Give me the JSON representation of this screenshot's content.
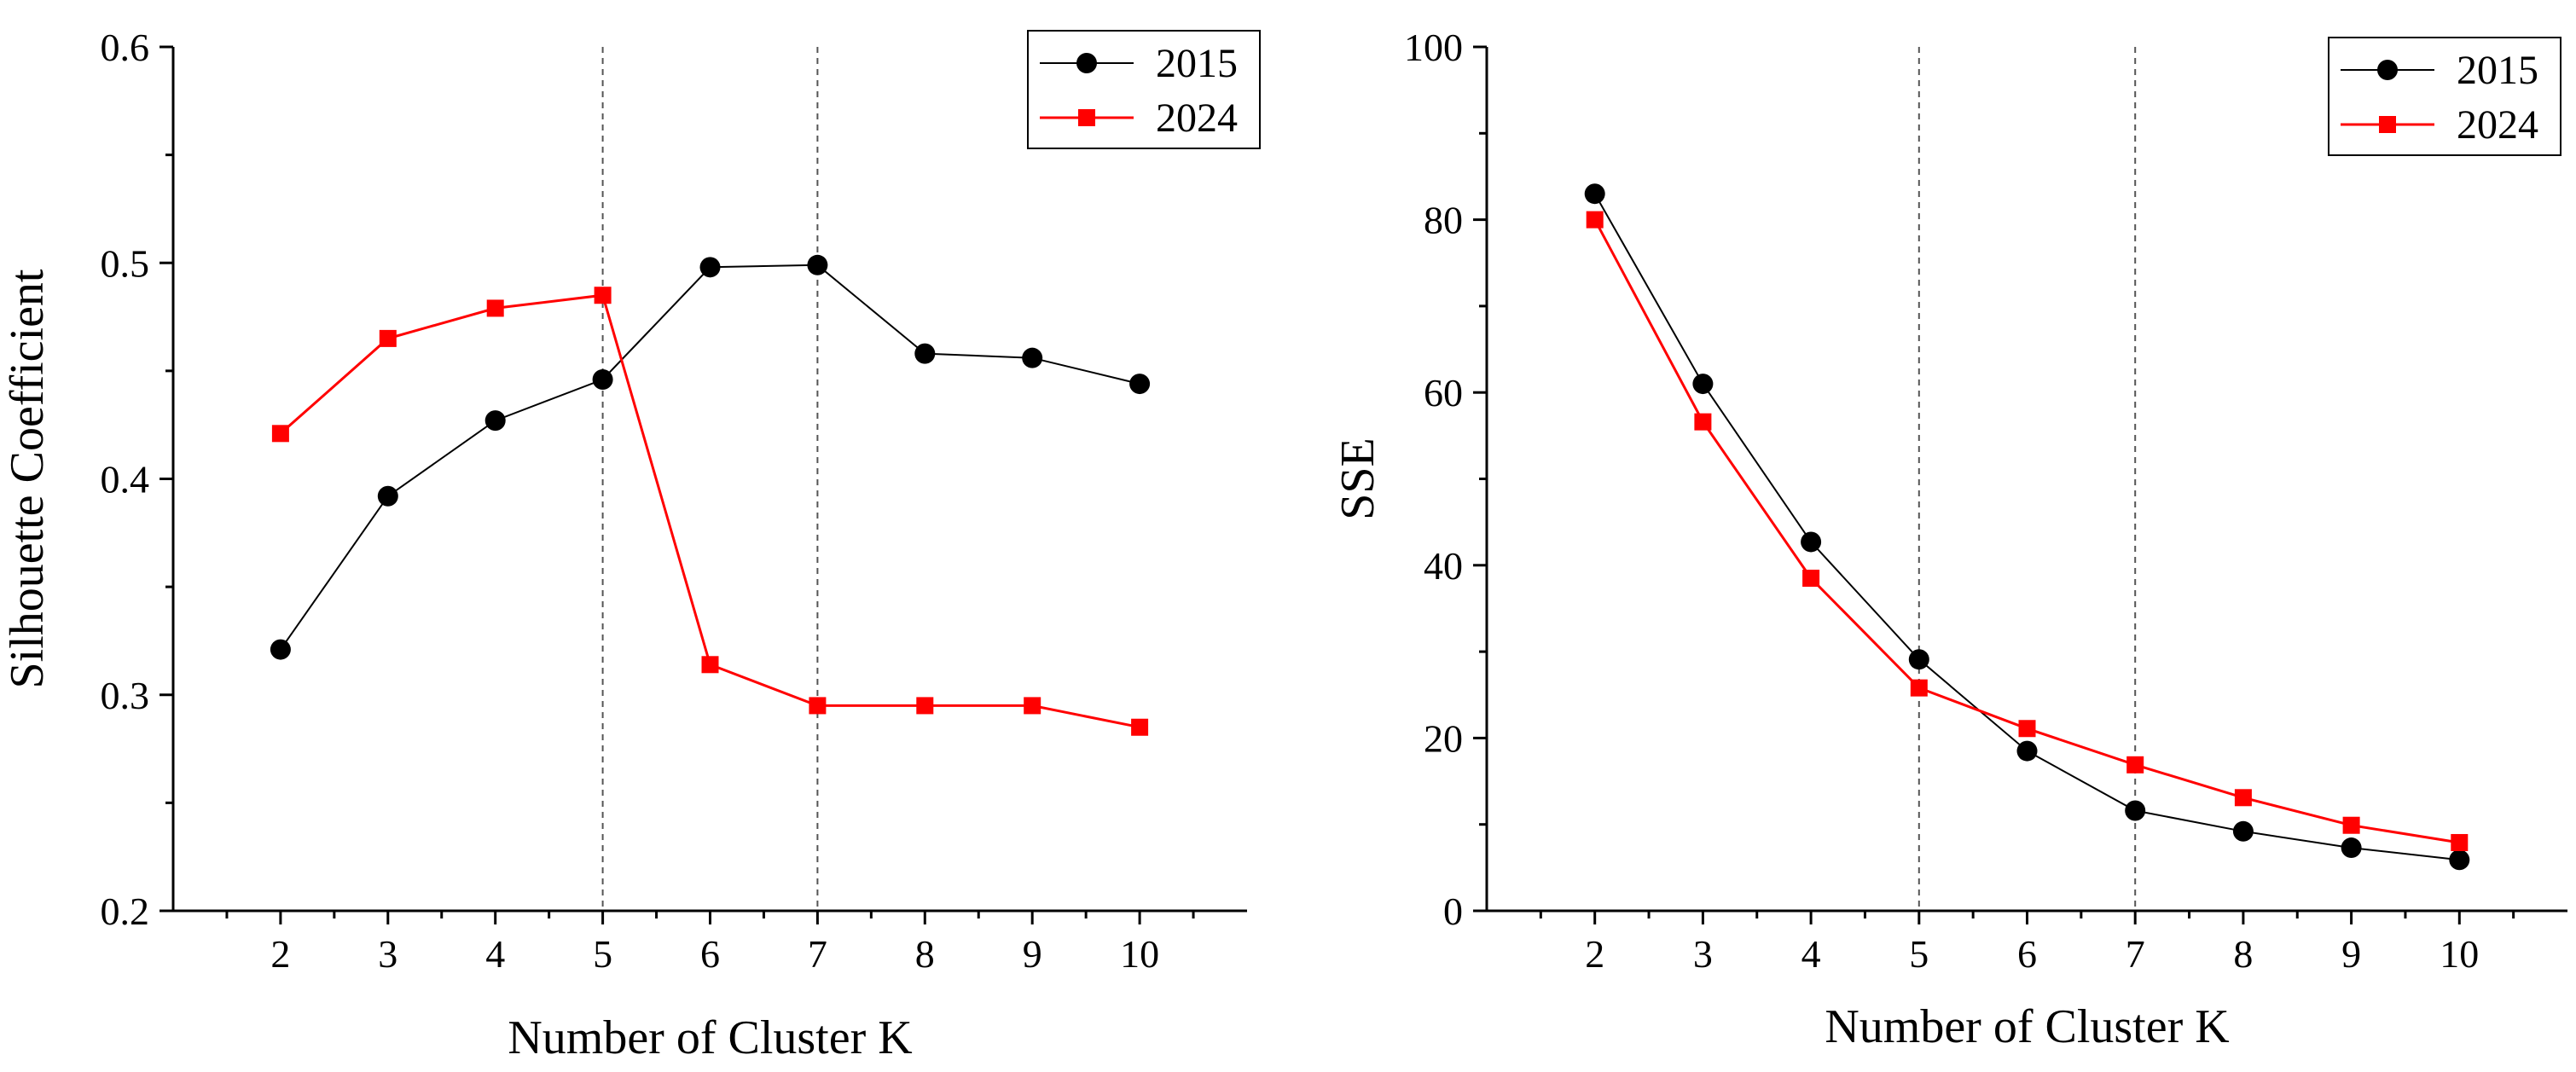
{
  "chart_data": [
    {
      "type": "line",
      "title": "",
      "xlabel": "Number of Cluster K",
      "ylabel": "Silhouette Coefficient",
      "x": [
        2,
        3,
        4,
        5,
        6,
        7,
        8,
        9,
        10
      ],
      "xlim": [
        1,
        11
      ],
      "ylim": [
        0.2,
        0.6
      ],
      "xticks": [
        2,
        3,
        4,
        5,
        6,
        7,
        8,
        9,
        10
      ],
      "yticks": [
        0.2,
        0.3,
        0.4,
        0.5,
        0.6
      ],
      "ytick_labels": [
        "0.2",
        "0.3",
        "0.4",
        "0.5",
        "0.6"
      ],
      "reference_lines_x": [
        5,
        7
      ],
      "legend_position": "top-right",
      "series": [
        {
          "name": "2015",
          "color": "#000000",
          "marker": "circle",
          "values": [
            0.321,
            0.392,
            0.427,
            0.446,
            0.498,
            0.499,
            0.458,
            0.456,
            0.444
          ]
        },
        {
          "name": "2024",
          "color": "#ff0000",
          "marker": "square",
          "values": [
            0.421,
            0.465,
            0.479,
            0.485,
            0.314,
            0.295,
            0.295,
            0.295,
            0.285
          ]
        }
      ]
    },
    {
      "type": "line",
      "title": "",
      "xlabel": "Number of Cluster K",
      "ylabel": "SSE",
      "x": [
        2,
        3,
        4,
        5,
        6,
        7,
        8,
        9,
        10
      ],
      "xlim": [
        1,
        11
      ],
      "ylim": [
        0,
        100
      ],
      "xticks": [
        2,
        3,
        4,
        5,
        6,
        7,
        8,
        9,
        10
      ],
      "yticks": [
        0,
        20,
        40,
        60,
        80,
        100
      ],
      "ytick_labels": [
        "0",
        "20",
        "40",
        "60",
        "80",
        "100"
      ],
      "reference_lines_x": [
        5,
        7
      ],
      "legend_position": "top-right",
      "series": [
        {
          "name": "2015",
          "color": "#000000",
          "marker": "circle",
          "values": [
            83.0,
            61.0,
            42.7,
            29.1,
            18.5,
            11.6,
            9.2,
            7.3,
            5.9
          ]
        },
        {
          "name": "2024",
          "color": "#ff0000",
          "marker": "square",
          "values": [
            80.0,
            56.6,
            38.5,
            25.8,
            21.1,
            16.9,
            13.1,
            9.9,
            7.9
          ]
        }
      ]
    }
  ]
}
